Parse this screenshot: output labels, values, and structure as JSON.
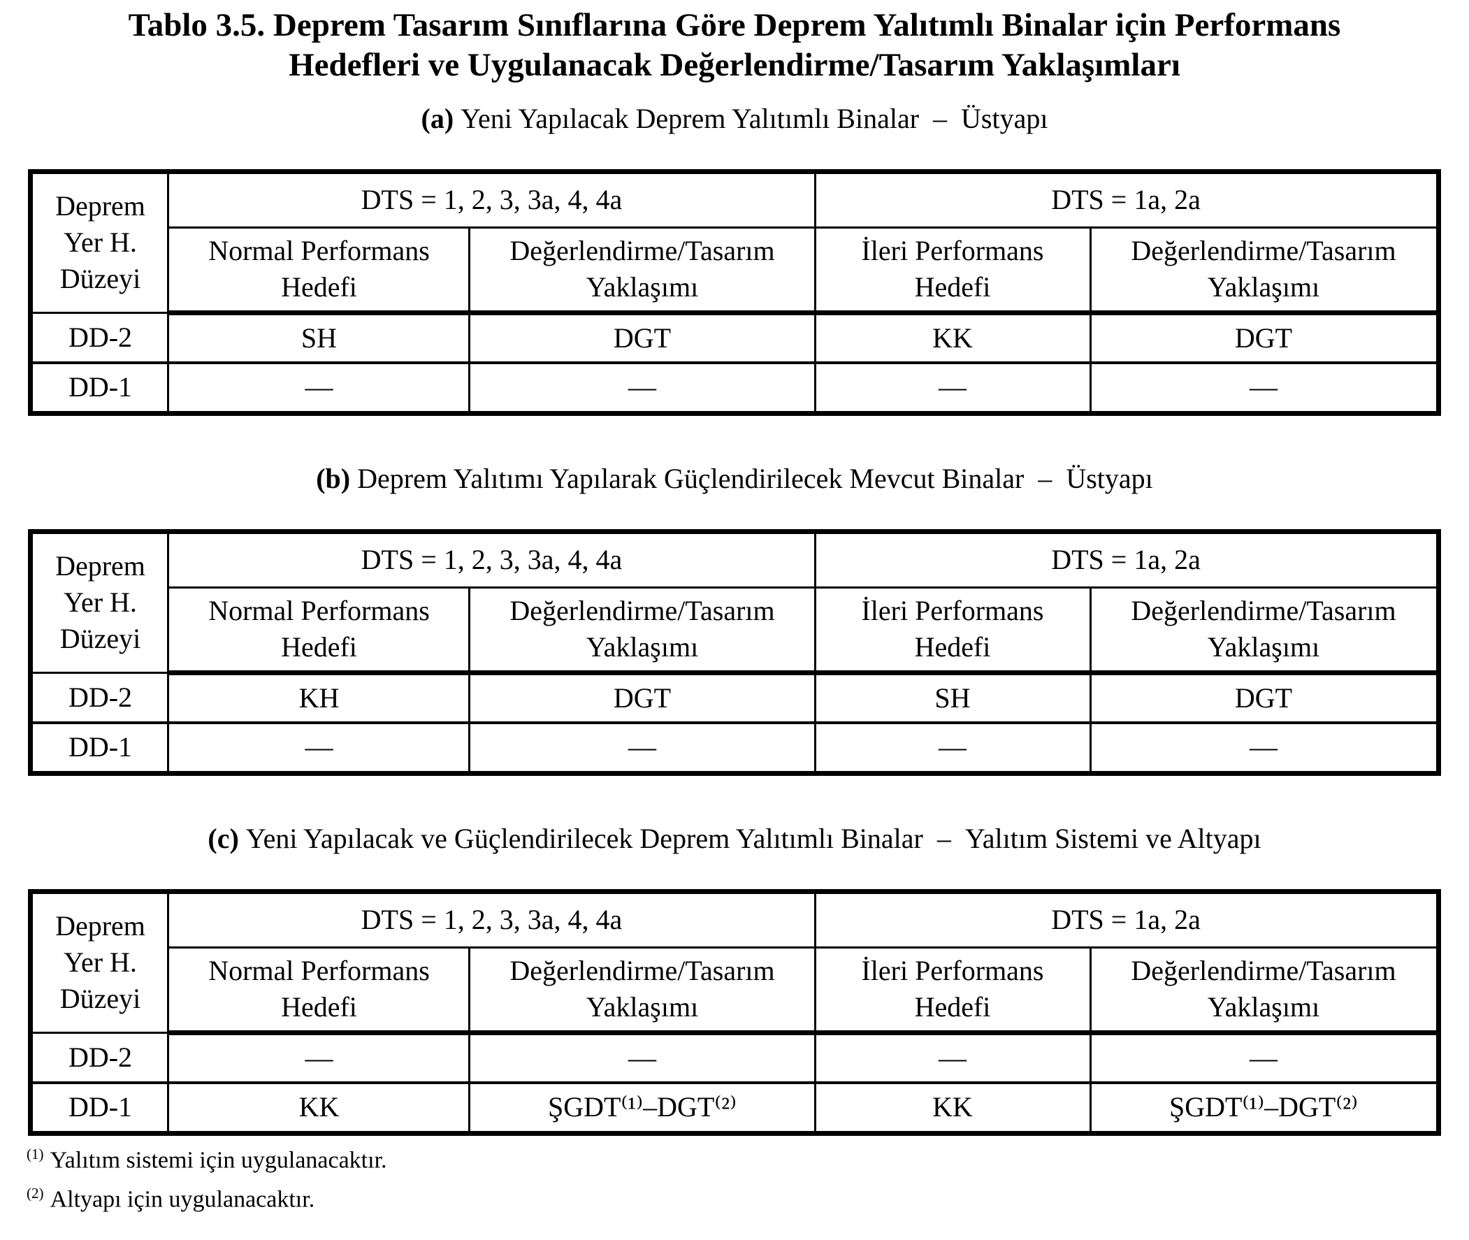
{
  "title_lines": {
    "line1": "Tablo 3.5. Deprem Tasarım Sınıflarına Göre Deprem Yalıtımlı Binalar için Performans",
    "line2": "Hedefleri ve Uygulanacak Değerlendirme/Tasarım Yaklaşımları"
  },
  "tables": [
    {
      "caption_label": "(a)",
      "caption_text": "Yeni Yapılacak Deprem Yalıtımlı Binalar – Üstyapı",
      "corner_header": "Deprem Yer H. Düzeyi",
      "groups": [
        {
          "label": "DTS = 1, 2, 3, 3a, 4, 4a",
          "columns": [
            "Normal Performans Hedefi",
            "Değerlendirme/Tasarım Yaklaşımı"
          ]
        },
        {
          "label": "DTS = 1a, 2a",
          "columns": [
            "İleri Performans Hedefi",
            "Değerlendirme/Tasarım Yaklaşımı"
          ]
        }
      ],
      "rows": [
        {
          "label": "DD-2",
          "cells": [
            "SH",
            "DGT",
            "KK",
            "DGT"
          ]
        },
        {
          "label": "DD-1",
          "cells": [
            "—",
            "—",
            "—",
            "—"
          ]
        }
      ]
    },
    {
      "caption_label": "(b)",
      "caption_text": "Deprem Yalıtımı Yapılarak Güçlendirilecek Mevcut Binalar – Üstyapı",
      "corner_header": "Deprem Yer H. Düzeyi",
      "groups": [
        {
          "label": "DTS = 1, 2, 3, 3a, 4, 4a",
          "columns": [
            "Normal Performans Hedefi",
            "Değerlendirme/Tasarım Yaklaşımı"
          ]
        },
        {
          "label": "DTS = 1a, 2a",
          "columns": [
            "İleri Performans Hedefi",
            "Değerlendirme/Tasarım Yaklaşımı"
          ]
        }
      ],
      "rows": [
        {
          "label": "DD-2",
          "cells": [
            "KH",
            "DGT",
            "SH",
            "DGT"
          ]
        },
        {
          "label": "DD-1",
          "cells": [
            "—",
            "—",
            "—",
            "—"
          ]
        }
      ]
    },
    {
      "caption_label": "(c)",
      "caption_text": "Yeni Yapılacak ve Güçlendirilecek Deprem Yalıtımlı Binalar – Yalıtım Sistemi ve Altyapı",
      "corner_header": "Deprem Yer H. Düzeyi",
      "groups": [
        {
          "label": "DTS = 1, 2, 3, 3a, 4, 4a",
          "columns": [
            "Normal Performans Hedefi",
            "Değerlendirme/Tasarım Yaklaşımı"
          ]
        },
        {
          "label": "DTS = 1a, 2a",
          "columns": [
            "İleri Performans Hedefi",
            "Değerlendirme/Tasarım Yaklaşımı"
          ]
        }
      ],
      "rows": [
        {
          "label": "DD-2",
          "cells": [
            "—",
            "—",
            "—",
            "—"
          ]
        },
        {
          "label": "DD-1",
          "cells": [
            "KK",
            "ŞGDT⁽¹⁾–DGT⁽²⁾",
            "KK",
            "ŞGDT⁽¹⁾–DGT⁽²⁾"
          ]
        }
      ]
    }
  ],
  "footnotes": [
    {
      "marker": "(1)",
      "text": "Yalıtım sistemi için uygulanacaktır."
    },
    {
      "marker": "(2)",
      "text": "Altyapı için uygulanacaktır."
    }
  ]
}
